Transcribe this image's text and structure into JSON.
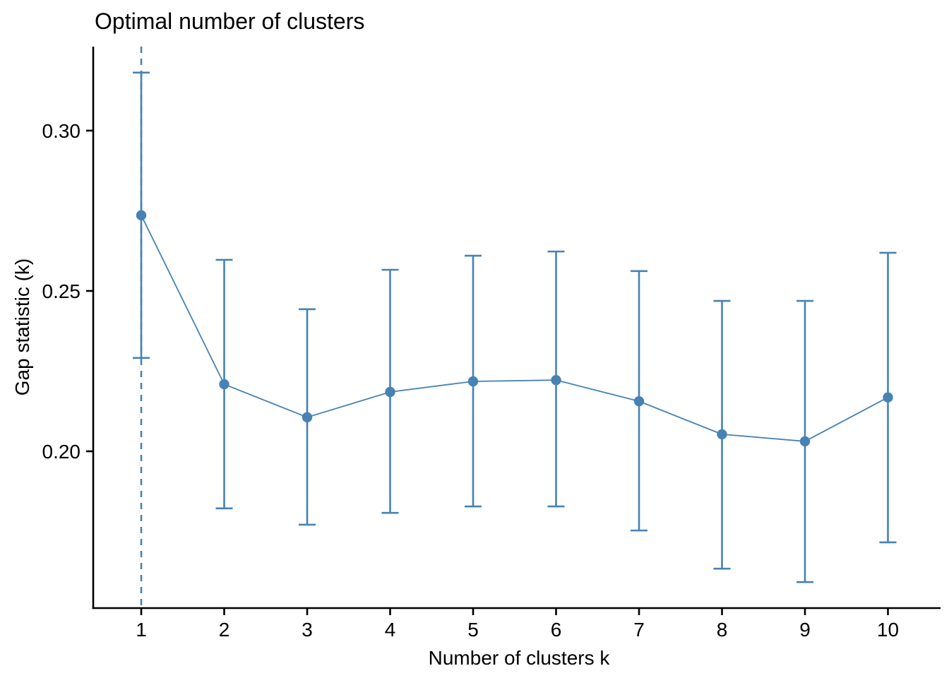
{
  "figure": {
    "background": "#FFFFFF"
  },
  "chart_data": {
    "type": "line",
    "title": "Optimal number of clusters",
    "xlabel": "Number of clusters k",
    "ylabel": "Gap statistic (k)",
    "x": [
      1,
      2,
      3,
      4,
      5,
      6,
      7,
      8,
      9,
      10
    ],
    "series": [
      {
        "name": "gap",
        "values": [
          0.2736,
          0.2209,
          0.2106,
          0.2185,
          0.2218,
          0.2222,
          0.2156,
          0.2053,
          0.2031,
          0.2168
        ]
      },
      {
        "name": "ymin",
        "values": [
          0.2291,
          0.1822,
          0.1771,
          0.1808,
          0.1828,
          0.1828,
          0.1753,
          0.1634,
          0.1592,
          0.1716
        ]
      },
      {
        "name": "ymax",
        "values": [
          0.3181,
          0.2597,
          0.2443,
          0.2566,
          0.261,
          0.2623,
          0.2562,
          0.2469,
          0.2469,
          0.2619
        ]
      }
    ],
    "error_bars": true,
    "vline": {
      "at": 1,
      "style": "dashed"
    },
    "optimal_k": 1,
    "x_tick_labels": [
      "1",
      "2",
      "3",
      "4",
      "5",
      "6",
      "7",
      "8",
      "9",
      "10"
    ],
    "y_ticks": [
      0.2,
      0.25,
      0.3
    ],
    "y_tick_labels": [
      "0.20",
      "0.25",
      "0.30"
    ],
    "xlim": [
      0.421,
      10.634
    ],
    "ylim": [
      0.1511,
      0.3262
    ],
    "grid": false,
    "legend": "none",
    "colors": {
      "series": "#4682B4",
      "axis": "#000000",
      "text": "#000000",
      "background": "#FFFFFF"
    }
  }
}
